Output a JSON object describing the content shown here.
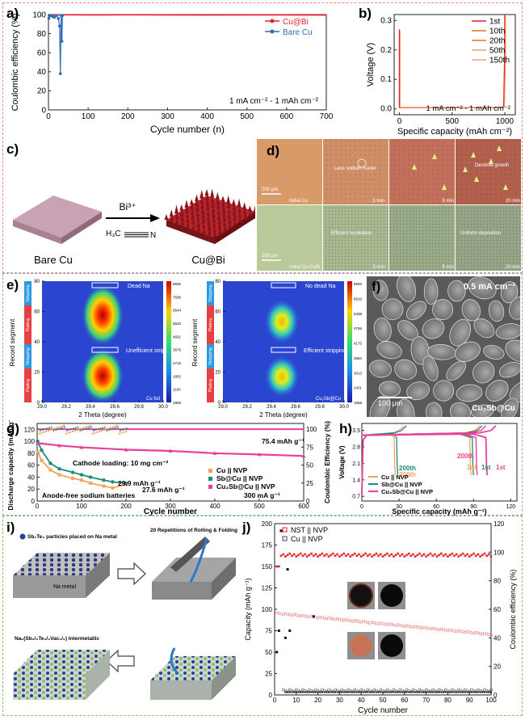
{
  "panels": {
    "a": "a)",
    "b": "b)",
    "c": "c)",
    "d": "d)",
    "e": "e)",
    "f": "f)",
    "g": "g)",
    "h": "h)",
    "i": "i)",
    "j": "j)"
  },
  "frame_colors": {
    "top": "#e88f87",
    "middle": "#8fa9d6",
    "bottom": "#8cbf6b"
  },
  "chart_data": [
    {
      "id": "a",
      "type": "line",
      "xlabel": "Cycle number (n)",
      "ylabel": "Coulombic efficiency (%)",
      "xlim": [
        0,
        700
      ],
      "ylim": [
        0,
        100
      ],
      "xticks": [
        "0",
        "100",
        "200",
        "300",
        "400",
        "500",
        "600",
        "700"
      ],
      "yticks": [
        "0",
        "20",
        "40",
        "60",
        "80",
        "100"
      ],
      "annotation": "1 mA cm⁻² - 1 mAh cm⁻²",
      "legend_position": "top-right",
      "series": [
        {
          "name": "Cu@Bi",
          "color": "#e8202a",
          "x": [
            1,
            10,
            50,
            100,
            200,
            300,
            400,
            500,
            600,
            700
          ],
          "y": [
            99,
            99.5,
            99.7,
            99.6,
            99.7,
            99.6,
            99.5,
            99.6,
            99.6,
            99.5
          ]
        },
        {
          "name": "Bare Cu",
          "color": "#2a6ebb",
          "x": [
            1,
            5,
            10,
            15,
            20,
            25,
            28,
            30,
            32,
            34,
            35
          ],
          "y": [
            96,
            99,
            98,
            97,
            99,
            96,
            88,
            38,
            99,
            72,
            99
          ]
        }
      ]
    },
    {
      "id": "b",
      "type": "line",
      "xlabel": "Specific capacity (mAh cm⁻²)",
      "ylabel": "Voltage (V)",
      "xlim": [
        -50,
        1100
      ],
      "ylim": [
        -0.02,
        0.32
      ],
      "xticks": [
        "0",
        "500",
        "1000"
      ],
      "yticks": [
        "0.0",
        "0.1",
        "0.2",
        "0.3"
      ],
      "annotation": "1 mA cm⁻² - 1 mAh cm⁻²",
      "legend_position": "top-right",
      "series": [
        {
          "name": "1st",
          "color": "#e8202a"
        },
        {
          "name": "10th",
          "color": "#e86a2a"
        },
        {
          "name": "20th",
          "color": "#d97a20"
        },
        {
          "name": "50th",
          "color": "#f0a060"
        },
        {
          "name": "150th",
          "color": "#f29a80"
        }
      ],
      "curve": {
        "x": [
          0,
          0,
          5,
          20,
          100,
          400,
          800,
          980,
          990,
          1000,
          1000
        ],
        "y": [
          0.27,
          0.005,
          0.004,
          0.004,
          0.004,
          0.004,
          0.004,
          0.004,
          0.01,
          0.2,
          0.32
        ]
      }
    },
    {
      "id": "g",
      "type": "line",
      "xlabel": "Cycle number",
      "ylabel": "Discharge capacity (mAh g⁻¹)",
      "y2label": "Coulombic Efficiency (%)",
      "xlim": [
        0,
        600
      ],
      "ylim": [
        0,
        130
      ],
      "y2lim": [
        0,
        108
      ],
      "xticks": [
        "0",
        "100",
        "200",
        "300",
        "400",
        "500",
        "600"
      ],
      "yticks": [
        "0",
        "20",
        "40",
        "60",
        "80",
        "100",
        "120"
      ],
      "y2ticks": [
        "0",
        "25",
        "50",
        "75",
        "100"
      ],
      "annotations": [
        "Cathode loading: 10 mg cm⁻²",
        "Anode-free sodium batteries",
        "300 mA g⁻¹",
        "75.4 mAh g⁻¹",
        "29.9 mAh g⁻¹",
        "27.6 mAh g⁻¹"
      ],
      "legend_position": "center-right",
      "series": [
        {
          "name": "Cu || NVP",
          "color": "#f5a35c",
          "x": [
            1,
            10,
            30,
            50,
            80,
            100,
            120,
            150,
            170,
            200
          ],
          "y": [
            82,
            68,
            52,
            44,
            38,
            35,
            30,
            25,
            22,
            27.6
          ]
        },
        {
          "name": "Sb@Cu || NVP",
          "color": "#1f8a7a",
          "x": [
            1,
            10,
            30,
            50,
            80,
            100,
            120,
            150,
            170,
            200
          ],
          "y": [
            100,
            85,
            63,
            54,
            48,
            44,
            40,
            35,
            32,
            29.9
          ]
        },
        {
          "name": "Cu₂Sb@Cu || NVP",
          "color": "#e8409a",
          "x": [
            1,
            50,
            100,
            200,
            300,
            400,
            500,
            600
          ],
          "y": [
            97,
            93,
            90,
            86,
            84,
            80,
            78,
            75.4
          ]
        }
      ]
    },
    {
      "id": "h",
      "type": "line",
      "xlabel": "Specific capacity (mAh g⁻¹)",
      "ylabel": "Voltage (V)",
      "xlim": [
        0,
        125
      ],
      "ylim": [
        0.5,
        3.8
      ],
      "xticks": [
        "0",
        "30",
        "60",
        "90",
        "120"
      ],
      "yticks": [
        "0.7",
        "1.4",
        "2.1",
        "2.8",
        "3.5"
      ],
      "annotations": [
        "200th",
        "200th",
        "200th",
        "1st",
        "1st",
        "1st"
      ],
      "legend_position": "bottom-left",
      "series": [
        {
          "name": "Cu || NVP",
          "color": "#f5a35c"
        },
        {
          "name": "Sb@Cu || NVP",
          "color": "#1f8a7a"
        },
        {
          "name": "Cu₂Sb@Cu || NVP",
          "color": "#e8409a"
        }
      ]
    },
    {
      "id": "j",
      "type": "scatter",
      "xlabel": "Cycle number",
      "ylabel": "Capacity (mAh g⁻¹)",
      "y2label": "Coulombic efficiency (%)",
      "xlim": [
        0,
        100
      ],
      "ylim": [
        0,
        200
      ],
      "y2lim": [
        0,
        120
      ],
      "xticks": [
        "0",
        "10",
        "20",
        "30",
        "40",
        "50",
        "60",
        "70",
        "80",
        "90",
        "100"
      ],
      "yticks": [
        "0",
        "25",
        "50",
        "75",
        "100",
        "125",
        "150",
        "175",
        "200"
      ],
      "y2ticks": [
        "0",
        "20",
        "40",
        "60",
        "80",
        "100",
        "120"
      ],
      "legend_position": "top-left",
      "series": [
        {
          "name": "NST || NVP",
          "color": "#e8202a"
        },
        {
          "name": "Cu || NVP",
          "color": "#444444"
        }
      ]
    }
  ],
  "panel_c": {
    "left_label": "Bare Cu",
    "right_label": "Cu@Bi",
    "reagent": "Bi³⁺",
    "solvent_left": "H₃C",
    "solvent_right": "N"
  },
  "panel_d": {
    "scale_top": "200 μm",
    "scale_bottom": "200 μm",
    "top_labels": [
      "Initial Cu",
      "Less sodium nuclei",
      "3 min",
      "9 min",
      "Dendrite growth",
      "20 min"
    ],
    "bottom_labels": [
      "Initial Cu-CuBi",
      "Efficient nucleation",
      "3 min",
      "9 min",
      "Uniform deposition",
      "20 min"
    ]
  },
  "panel_e": {
    "ylabel": "Record segment",
    "xlabel": "2 Theta (degree)",
    "xticks": [
      "29.0",
      "29.2",
      "29.4",
      "29.6",
      "29.8",
      "30.0"
    ],
    "yticks": [
      "0",
      "20",
      "40",
      "60",
      "80"
    ],
    "segments": [
      "Stripping",
      "Plating",
      "Stripping",
      "Plating"
    ],
    "left": {
      "sample": "Cu foil",
      "ann_top": "Dead Na",
      "ann_mid": "Unefficient stripping",
      "colorbar": [
        "8500",
        "7506",
        "6544",
        "5533",
        "4601",
        "3675",
        "2715",
        "1850",
        "1190",
        "1858"
      ]
    },
    "right": {
      "sample": "Cu₂Sb@Cu",
      "ann_top": "No dead Na",
      "ann_mid": "Efficient stripping",
      "colorbar": [
        "8500",
        "6919",
        "5338",
        "4756",
        "4175",
        "3594",
        "3013",
        "2431",
        "1858"
      ]
    }
  },
  "panel_f": {
    "current": "0.5 mA cm⁻²",
    "scale": "100 μm",
    "sample": "Cu₂Sb@Cu"
  },
  "panel_i": {
    "label1": "Sb₂Te₃ particles placed on Na metal",
    "label1b": "Na metal",
    "label2": "20 Repetitions of Rolling & Folding",
    "label3": "Na₂(Sb₂/₆Te₃/₆Vac₁/₆) Intermetallic"
  }
}
